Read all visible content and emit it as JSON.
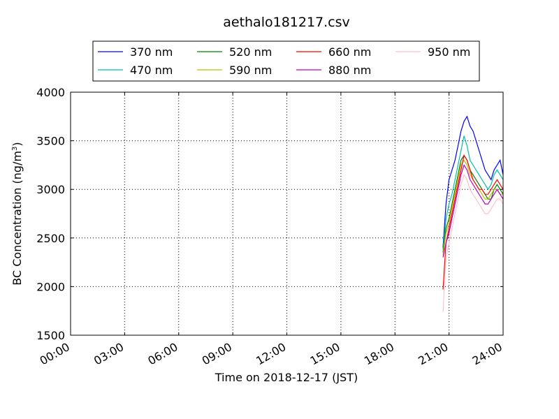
{
  "chart_data": {
    "type": "line",
    "title": "aethalo181217.csv",
    "xlabel": "Time on 2018-12-17 (JST)",
    "ylabel_main": "BC Concentration (ng/m",
    "ylabel_sup": "3",
    "ylabel_close": ")",
    "xlim": [
      "00:00",
      "24:00"
    ],
    "ylim": [
      1500,
      4000
    ],
    "x_ticks": [
      "00:00",
      "03:00",
      "06:00",
      "09:00",
      "12:00",
      "15:00",
      "18:00",
      "21:00",
      "24:00"
    ],
    "y_ticks": [
      1500,
      2000,
      2500,
      3000,
      3500,
      4000
    ],
    "grid": true,
    "legend_position": "top",
    "x": [
      "20:40",
      "20:50",
      "21:00",
      "21:10",
      "21:20",
      "21:30",
      "21:40",
      "21:50",
      "22:00",
      "22:10",
      "22:20",
      "22:30",
      "22:40",
      "22:50",
      "23:00",
      "23:10",
      "23:20",
      "23:30",
      "23:40",
      "23:50",
      "24:00"
    ],
    "series": [
      {
        "name": "370 nm",
        "color": "#0000ff",
        "values": [
          2400,
          2850,
          3100,
          3200,
          3300,
          3450,
          3600,
          3700,
          3750,
          3650,
          3600,
          3500,
          3400,
          3300,
          3200,
          3150,
          3100,
          3200,
          3250,
          3300,
          3150
        ]
      },
      {
        "name": "470 nm",
        "color": "#00bfa5",
        "values": [
          2380,
          2700,
          2850,
          2950,
          3100,
          3250,
          3400,
          3550,
          3450,
          3300,
          3250,
          3200,
          3150,
          3100,
          3050,
          3000,
          3050,
          3150,
          3200,
          3150,
          3100
        ]
      },
      {
        "name": "520 nm",
        "color": "#008000",
        "values": [
          2350,
          2600,
          2700,
          2850,
          3000,
          3150,
          3300,
          3350,
          3300,
          3200,
          3150,
          3100,
          3050,
          3000,
          2950,
          2900,
          2900,
          3000,
          3050,
          3000,
          2950
        ]
      },
      {
        "name": "590 nm",
        "color": "#bfbf00",
        "values": [
          2320,
          2550,
          2650,
          2800,
          2950,
          3100,
          3250,
          3300,
          3250,
          3150,
          3100,
          3050,
          3000,
          2950,
          2900,
          2900,
          2950,
          3000,
          3000,
          2950,
          2950
        ]
      },
      {
        "name": "660 nm",
        "color": "#ff0000",
        "values": [
          1970,
          2450,
          2600,
          2750,
          2900,
          3050,
          3200,
          3350,
          3300,
          3200,
          3100,
          3050,
          3000,
          3000,
          2950,
          2950,
          3000,
          3050,
          3100,
          3050,
          3000
        ]
      },
      {
        "name": "880 nm",
        "color": "#bf00bf",
        "values": [
          2300,
          2450,
          2550,
          2700,
          2850,
          3000,
          3150,
          3250,
          3200,
          3100,
          3050,
          3000,
          2950,
          2900,
          2850,
          2850,
          2900,
          2950,
          3000,
          2950,
          2900
        ]
      },
      {
        "name": "950 nm",
        "color": "#ffc0cb",
        "values": [
          1740,
          2300,
          2450,
          2600,
          2750,
          2900,
          3050,
          3150,
          3100,
          3000,
          2950,
          2900,
          2850,
          2800,
          2750,
          2750,
          2800,
          2850,
          2900,
          2900,
          2850
        ]
      }
    ]
  }
}
